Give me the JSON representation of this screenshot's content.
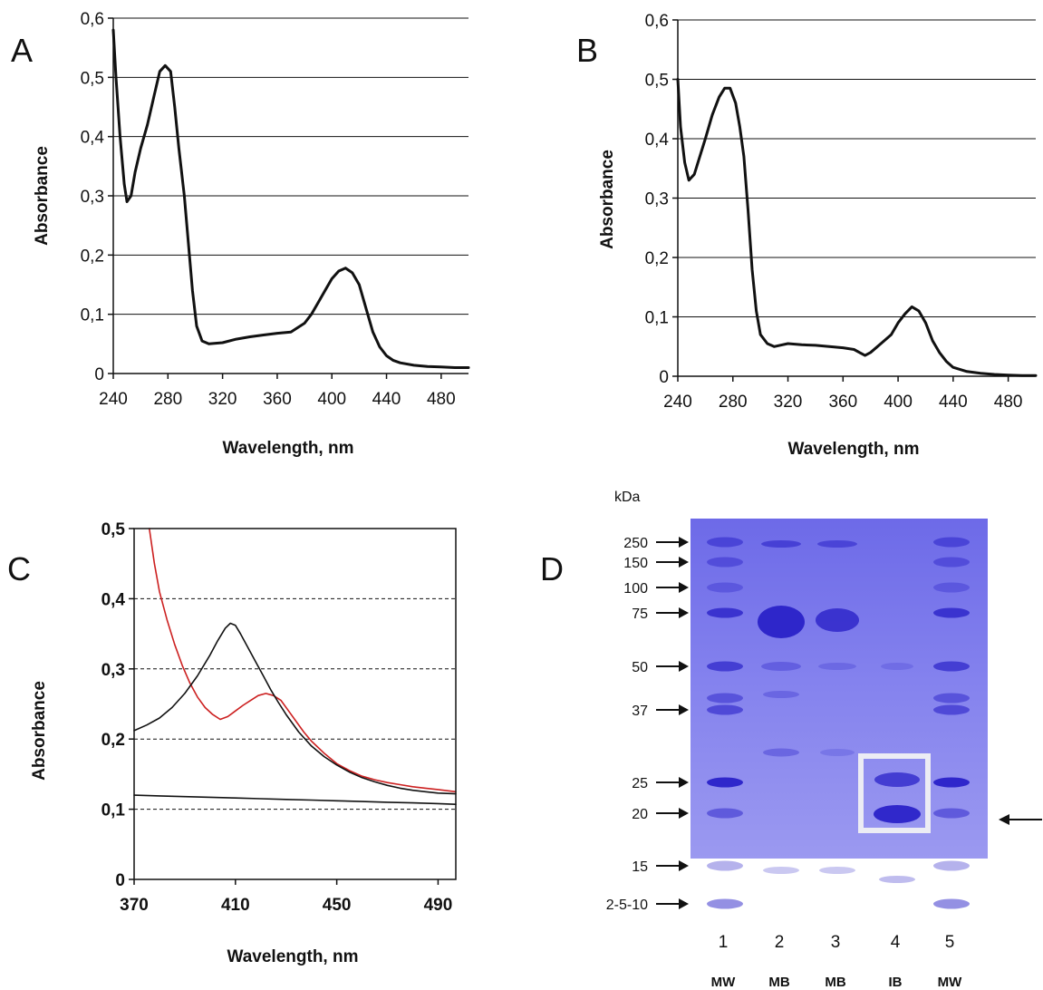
{
  "chart_data": [
    {
      "panel": "A",
      "type": "line",
      "ylabel": "Absorbance",
      "xlabel": "Wavelength, nm",
      "xlim": [
        240,
        500
      ],
      "ylim": [
        0,
        0.6
      ],
      "xticks": [
        "240",
        "280",
        "320",
        "360",
        "400",
        "440",
        "480"
      ],
      "yticks": [
        "0",
        "0,1",
        "0,2",
        "0,3",
        "0,4",
        "0,5",
        "0,6"
      ],
      "grid": "horizontal",
      "series": [
        {
          "x": [
            240,
            242,
            245,
            248,
            250,
            253,
            256,
            260,
            265,
            270,
            274,
            278,
            282,
            285,
            288,
            292,
            295,
            298,
            301,
            305,
            310,
            320,
            330,
            340,
            350,
            360,
            370,
            380,
            385,
            390,
            395,
            400,
            405,
            410,
            415,
            420,
            425,
            430,
            435,
            440,
            445,
            450,
            460,
            470,
            480,
            490,
            500
          ],
          "y": [
            0.58,
            0.5,
            0.4,
            0.32,
            0.29,
            0.3,
            0.34,
            0.38,
            0.42,
            0.47,
            0.51,
            0.52,
            0.51,
            0.45,
            0.38,
            0.3,
            0.22,
            0.14,
            0.08,
            0.055,
            0.05,
            0.052,
            0.058,
            0.062,
            0.065,
            0.068,
            0.07,
            0.085,
            0.1,
            0.12,
            0.14,
            0.16,
            0.173,
            0.178,
            0.17,
            0.15,
            0.11,
            0.07,
            0.045,
            0.03,
            0.022,
            0.018,
            0.014,
            0.012,
            0.011,
            0.01,
            0.01
          ]
        }
      ]
    },
    {
      "panel": "B",
      "type": "line",
      "ylabel": "Absorbance",
      "xlabel": "Wavelength, nm",
      "xlim": [
        240,
        500
      ],
      "ylim": [
        0,
        0.6
      ],
      "xticks": [
        "240",
        "280",
        "320",
        "360",
        "400",
        "440",
        "480"
      ],
      "yticks": [
        "0",
        "0,1",
        "0,2",
        "0,3",
        "0,4",
        "0,5",
        "0,6"
      ],
      "grid": "horizontal",
      "series": [
        {
          "x": [
            240,
            242,
            245,
            248,
            252,
            256,
            260,
            265,
            270,
            274,
            278,
            282,
            285,
            288,
            291,
            294,
            297,
            300,
            305,
            310,
            320,
            330,
            340,
            350,
            360,
            368,
            372,
            376,
            380,
            385,
            390,
            395,
            400,
            405,
            410,
            415,
            420,
            425,
            430,
            435,
            440,
            450,
            460,
            470,
            480,
            490,
            500
          ],
          "y": [
            0.5,
            0.42,
            0.36,
            0.33,
            0.34,
            0.37,
            0.4,
            0.44,
            0.47,
            0.485,
            0.485,
            0.46,
            0.42,
            0.37,
            0.28,
            0.18,
            0.11,
            0.07,
            0.055,
            0.05,
            0.055,
            0.053,
            0.052,
            0.05,
            0.048,
            0.045,
            0.04,
            0.035,
            0.04,
            0.05,
            0.06,
            0.07,
            0.09,
            0.105,
            0.117,
            0.11,
            0.09,
            0.06,
            0.04,
            0.025,
            0.015,
            0.008,
            0.005,
            0.003,
            0.002,
            0.001,
            0.001
          ]
        }
      ]
    },
    {
      "panel": "C",
      "type": "line",
      "ylabel": "Absorbance",
      "xlabel": "Wavelength, nm",
      "xlim": [
        370,
        497
      ],
      "ylim": [
        0,
        0.5
      ],
      "xticks": [
        "370",
        "410",
        "450",
        "490"
      ],
      "yticks": [
        "0",
        "0,1",
        "0,2",
        "0,3",
        "0,4",
        "0,5"
      ],
      "grid": "horizontal dashed",
      "series": [
        {
          "color": "#cc2020",
          "x": [
            376,
            378,
            380,
            383,
            386,
            389,
            392,
            395,
            398,
            401,
            404,
            407,
            410,
            413,
            416,
            419,
            422,
            425,
            428,
            431,
            434,
            437,
            440,
            445,
            450,
            455,
            460,
            465,
            470,
            475,
            480,
            485,
            490,
            497
          ],
          "y": [
            0.5,
            0.45,
            0.41,
            0.37,
            0.335,
            0.305,
            0.28,
            0.26,
            0.245,
            0.235,
            0.228,
            0.232,
            0.24,
            0.248,
            0.255,
            0.262,
            0.265,
            0.262,
            0.255,
            0.24,
            0.225,
            0.21,
            0.197,
            0.18,
            0.165,
            0.155,
            0.147,
            0.142,
            0.138,
            0.135,
            0.132,
            0.13,
            0.128,
            0.125
          ]
        },
        {
          "color": "#111111",
          "x": [
            370,
            375,
            380,
            385,
            390,
            395,
            400,
            403,
            406,
            408,
            410,
            412,
            415,
            418,
            421,
            424,
            427,
            430,
            435,
            440,
            445,
            450,
            455,
            460,
            465,
            470,
            475,
            480,
            485,
            490,
            497
          ],
          "y": [
            0.212,
            0.22,
            0.23,
            0.245,
            0.265,
            0.29,
            0.32,
            0.34,
            0.358,
            0.365,
            0.362,
            0.35,
            0.33,
            0.31,
            0.29,
            0.27,
            0.252,
            0.235,
            0.21,
            0.19,
            0.175,
            0.163,
            0.153,
            0.145,
            0.139,
            0.134,
            0.13,
            0.127,
            0.125,
            0.123,
            0.122
          ]
        },
        {
          "color": "#111111",
          "x": [
            370,
            380,
            390,
            400,
            410,
            420,
            430,
            440,
            450,
            460,
            470,
            480,
            490,
            497
          ],
          "y": [
            0.12,
            0.119,
            0.118,
            0.117,
            0.116,
            0.115,
            0.114,
            0.113,
            0.112,
            0.111,
            0.11,
            0.109,
            0.108,
            0.107
          ]
        }
      ]
    }
  ],
  "gel": {
    "panel": "D",
    "unit": "kDa",
    "markers": [
      {
        "label": "250",
        "kda": 250
      },
      {
        "label": "150",
        "kda": 150
      },
      {
        "label": "100",
        "kda": 100
      },
      {
        "label": "75",
        "kda": 75
      },
      {
        "label": "50",
        "kda": 50
      },
      {
        "label": "37",
        "kda": 37
      },
      {
        "label": "25",
        "kda": 25
      },
      {
        "label": "20",
        "kda": 20
      },
      {
        "label": "15",
        "kda": 15
      },
      {
        "label": "2-5-10",
        "kda": 10
      }
    ],
    "lanes": [
      {
        "number": "1",
        "label": "MW"
      },
      {
        "number": "2",
        "label": "MB"
      },
      {
        "number": "3",
        "label": "MB"
      },
      {
        "number": "4",
        "label": "IB"
      },
      {
        "number": "5",
        "label": "MW"
      }
    ],
    "highlight_lane": "4",
    "gel_color": "#7a78ec",
    "band_color": "#2a22c8"
  }
}
